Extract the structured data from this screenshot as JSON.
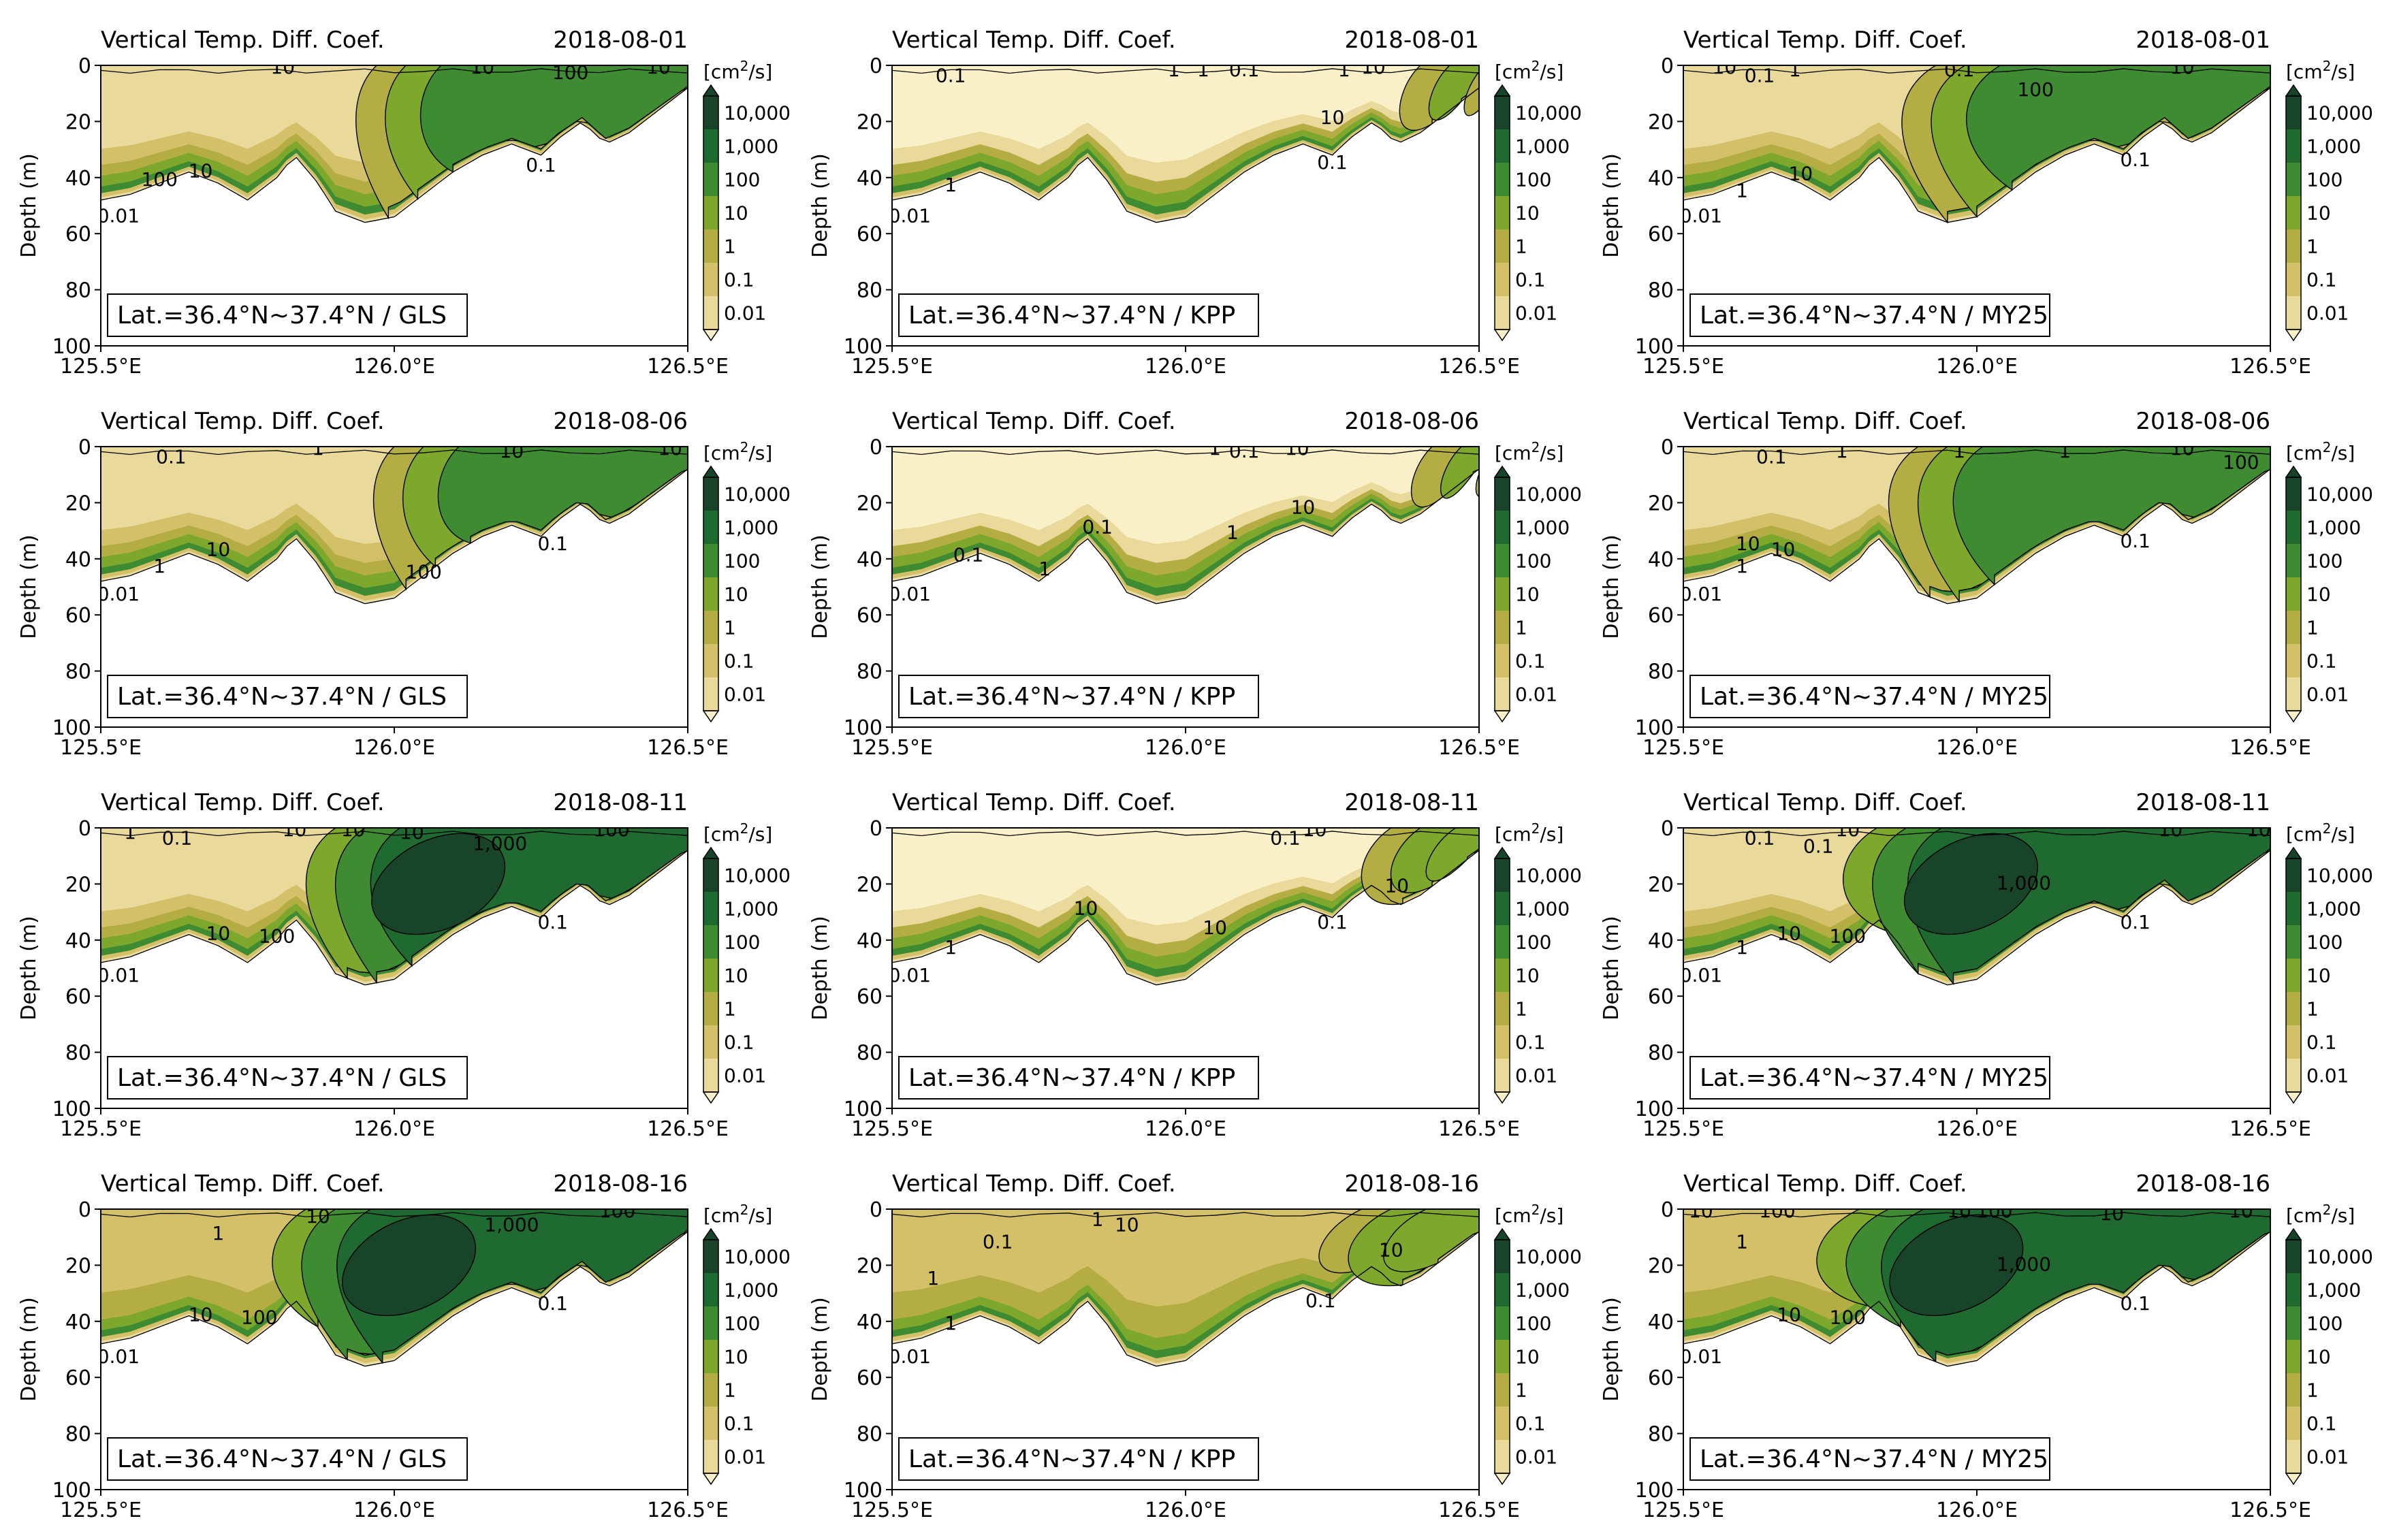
{
  "figure_title": "Vertical Temp. Diff. Coef.",
  "chart_data": {
    "type": "contour",
    "quantity": "Vertical Temp. Diff. Coef.",
    "units_prefix": "[cm",
    "units_sup": "2",
    "units_suffix": "/s]",
    "ylabel": "Depth (m)",
    "xlim": [
      125.5,
      126.5
    ],
    "ylim": [
      100,
      0
    ],
    "x_ticks": [
      125.5,
      126.0,
      126.5
    ],
    "x_tick_labels": [
      "125.5°E",
      "126.0°E",
      "126.5°E"
    ],
    "y_ticks": [
      0,
      20,
      40,
      60,
      80,
      100
    ],
    "y_tick_labels": [
      "0",
      "20",
      "40",
      "60",
      "80",
      "100"
    ],
    "latitude_label": "Lat.=36.4°N~37.4°N",
    "contour_levels": [
      0.01,
      0.1,
      1,
      10,
      100,
      1000,
      10000
    ],
    "colorbar_labels": [
      "10,000",
      "1,000",
      "100",
      "10",
      "1",
      "0.1",
      "0.01"
    ],
    "palette": [
      "#faf0c8",
      "#e9d99a",
      "#d4c068",
      "#b3ad44",
      "#7ea82c",
      "#3e8b32",
      "#1f6a30",
      "#18442a"
    ],
    "seafloor_depth": [
      [
        125.5,
        48
      ],
      [
        125.55,
        46
      ],
      [
        125.6,
        42
      ],
      [
        125.65,
        38
      ],
      [
        125.7,
        42
      ],
      [
        125.75,
        48
      ],
      [
        125.8,
        40
      ],
      [
        125.83,
        32
      ],
      [
        125.87,
        42
      ],
      [
        125.9,
        52
      ],
      [
        125.95,
        56
      ],
      [
        126.0,
        54
      ],
      [
        126.05,
        46
      ],
      [
        126.1,
        38
      ],
      [
        126.15,
        32
      ],
      [
        126.2,
        28
      ],
      [
        126.25,
        32
      ],
      [
        126.28,
        26
      ],
      [
        126.32,
        20
      ],
      [
        126.36,
        28
      ],
      [
        126.4,
        24
      ],
      [
        126.45,
        16
      ],
      [
        126.5,
        8
      ]
    ],
    "dates": [
      "2018-08-01",
      "2018-08-06",
      "2018-08-11",
      "2018-08-16"
    ],
    "schemes": [
      "GLS",
      "KPP",
      "MY25"
    ],
    "panels": [
      {
        "date": "2018-08-01",
        "scheme": "GLS",
        "front": [
          126.02,
          125.97,
          126.33
        ],
        "deep_level": 5,
        "surface": 1,
        "labels": [
          {
            "text": "10",
            "x": 125.81,
            "y": 0
          },
          {
            "text": "10",
            "x": 126.15,
            "y": 0
          },
          {
            "text": "100",
            "x": 126.3,
            "y": 2
          },
          {
            "text": "10",
            "x": 126.45,
            "y": 0
          },
          {
            "text": "10",
            "x": 125.67,
            "y": 37
          },
          {
            "text": "100",
            "x": 125.6,
            "y": 40
          },
          {
            "text": "0.01",
            "x": 125.53,
            "y": 53
          },
          {
            "text": "0.1",
            "x": 126.25,
            "y": 35
          }
        ]
      },
      {
        "date": "2018-08-01",
        "scheme": "KPP",
        "front": [
          126.45,
          126.4,
          126.5
        ],
        "deep_level": 3,
        "surface": 0,
        "labels": [
          {
            "text": "0.1",
            "x": 125.6,
            "y": 3
          },
          {
            "text": "1",
            "x": 125.98,
            "y": 1
          },
          {
            "text": "1",
            "x": 126.03,
            "y": 1
          },
          {
            "text": "0.1",
            "x": 126.1,
            "y": 1
          },
          {
            "text": "1",
            "x": 126.27,
            "y": 1
          },
          {
            "text": "10",
            "x": 126.32,
            "y": 0
          },
          {
            "text": "10",
            "x": 126.25,
            "y": 18
          },
          {
            "text": "0.1",
            "x": 126.25,
            "y": 34
          },
          {
            "text": "1",
            "x": 125.6,
            "y": 42
          },
          {
            "text": "0.01",
            "x": 125.53,
            "y": 53
          }
        ]
      },
      {
        "date": "2018-08-01",
        "scheme": "MY25",
        "front": [
          125.98,
          125.9,
          126.2
        ],
        "deep_level": 5,
        "surface": 1,
        "labels": [
          {
            "text": "10",
            "x": 125.57,
            "y": 0
          },
          {
            "text": "0.1",
            "x": 125.63,
            "y": 3
          },
          {
            "text": "1",
            "x": 125.69,
            "y": 1
          },
          {
            "text": "0.1",
            "x": 125.97,
            "y": 1
          },
          {
            "text": "10",
            "x": 126.35,
            "y": 0
          },
          {
            "text": "100",
            "x": 126.1,
            "y": 8
          },
          {
            "text": "10",
            "x": 125.7,
            "y": 38
          },
          {
            "text": "1",
            "x": 125.6,
            "y": 44
          },
          {
            "text": "0.01",
            "x": 125.53,
            "y": 53
          },
          {
            "text": "0.1",
            "x": 126.27,
            "y": 33
          }
        ]
      },
      {
        "date": "2018-08-06",
        "scheme": "GLS",
        "front": [
          126.05,
          126.0,
          126.35
        ],
        "deep_level": 5,
        "surface": 1,
        "labels": [
          {
            "text": "0.1",
            "x": 125.62,
            "y": 3
          },
          {
            "text": "1",
            "x": 125.87,
            "y": 0
          },
          {
            "text": "10",
            "x": 126.2,
            "y": 1
          },
          {
            "text": "10",
            "x": 126.47,
            "y": 0
          },
          {
            "text": "10",
            "x": 125.7,
            "y": 36
          },
          {
            "text": "1",
            "x": 125.6,
            "y": 42
          },
          {
            "text": "0.01",
            "x": 125.53,
            "y": 52
          },
          {
            "text": "100",
            "x": 126.05,
            "y": 44
          },
          {
            "text": "0.1",
            "x": 126.27,
            "y": 34
          }
        ]
      },
      {
        "date": "2018-08-06",
        "scheme": "KPP",
        "front": [
          126.47,
          126.42,
          126.5
        ],
        "deep_level": 3,
        "surface": 0,
        "labels": [
          {
            "text": "1",
            "x": 126.05,
            "y": 0
          },
          {
            "text": "0.1",
            "x": 126.1,
            "y": 1
          },
          {
            "text": "10",
            "x": 126.19,
            "y": 0
          },
          {
            "text": "0.1",
            "x": 125.85,
            "y": 28
          },
          {
            "text": "1",
            "x": 125.76,
            "y": 43
          },
          {
            "text": "0.1",
            "x": 125.63,
            "y": 38
          },
          {
            "text": "1",
            "x": 126.08,
            "y": 30
          },
          {
            "text": "10",
            "x": 126.2,
            "y": 21
          },
          {
            "text": "0.01",
            "x": 125.53,
            "y": 52
          }
        ]
      },
      {
        "date": "2018-08-06",
        "scheme": "MY25",
        "front": [
          125.95,
          125.88,
          126.15
        ],
        "deep_level": 5,
        "surface": 1,
        "labels": [
          {
            "text": "0.1",
            "x": 125.65,
            "y": 3
          },
          {
            "text": "1",
            "x": 125.77,
            "y": 1
          },
          {
            "text": "1",
            "x": 125.97,
            "y": 1
          },
          {
            "text": "1",
            "x": 126.15,
            "y": 1
          },
          {
            "text": "10",
            "x": 126.35,
            "y": 0
          },
          {
            "text": "100",
            "x": 126.45,
            "y": 5
          },
          {
            "text": "10",
            "x": 125.67,
            "y": 36
          },
          {
            "text": "10",
            "x": 125.61,
            "y": 34
          },
          {
            "text": "1",
            "x": 125.6,
            "y": 42
          },
          {
            "text": "0.01",
            "x": 125.53,
            "y": 52
          },
          {
            "text": "0.1",
            "x": 126.27,
            "y": 33
          }
        ]
      },
      {
        "date": "2018-08-11",
        "scheme": "GLS",
        "front": [
          125.95,
          125.88,
          126.1
        ],
        "deep_level": 6,
        "surface": 1,
        "labels": [
          {
            "text": "1",
            "x": 125.55,
            "y": 1
          },
          {
            "text": "0.1",
            "x": 125.63,
            "y": 3
          },
          {
            "text": "10",
            "x": 125.83,
            "y": 0
          },
          {
            "text": "10",
            "x": 125.93,
            "y": 0
          },
          {
            "text": "10",
            "x": 126.03,
            "y": 1
          },
          {
            "text": "1,000",
            "x": 126.18,
            "y": 5
          },
          {
            "text": "100",
            "x": 126.37,
            "y": 0
          },
          {
            "text": "10",
            "x": 125.7,
            "y": 37
          },
          {
            "text": "100",
            "x": 125.8,
            "y": 38
          },
          {
            "text": "0.01",
            "x": 125.53,
            "y": 52
          },
          {
            "text": "0.1",
            "x": 126.27,
            "y": 33
          }
        ]
      },
      {
        "date": "2018-08-11",
        "scheme": "KPP",
        "front": [
          126.4,
          126.33,
          126.5
        ],
        "deep_level": 4,
        "surface": 0,
        "labels": [
          {
            "text": "0.1",
            "x": 126.17,
            "y": 3
          },
          {
            "text": "10",
            "x": 126.22,
            "y": 0
          },
          {
            "text": "10",
            "x": 125.83,
            "y": 28
          },
          {
            "text": "10",
            "x": 126.05,
            "y": 35
          },
          {
            "text": "0.1",
            "x": 126.25,
            "y": 33
          },
          {
            "text": "10",
            "x": 126.36,
            "y": 20
          },
          {
            "text": "1",
            "x": 125.6,
            "y": 42
          },
          {
            "text": "0.01",
            "x": 125.53,
            "y": 52
          }
        ]
      },
      {
        "date": "2018-08-11",
        "scheme": "MY25",
        "front": [
          125.88,
          125.8,
          126.0
        ],
        "deep_level": 6,
        "surface": 1,
        "labels": [
          {
            "text": "0.1",
            "x": 125.63,
            "y": 3
          },
          {
            "text": "0.1",
            "x": 125.73,
            "y": 6
          },
          {
            "text": "10",
            "x": 125.78,
            "y": 0
          },
          {
            "text": "1,000",
            "x": 126.08,
            "y": 19
          },
          {
            "text": "10",
            "x": 126.33,
            "y": 0
          },
          {
            "text": "10",
            "x": 126.48,
            "y": 0
          },
          {
            "text": "10",
            "x": 125.68,
            "y": 37
          },
          {
            "text": "100",
            "x": 125.78,
            "y": 38
          },
          {
            "text": "1",
            "x": 125.6,
            "y": 42
          },
          {
            "text": "0.01",
            "x": 125.53,
            "y": 52
          },
          {
            "text": "0.1",
            "x": 126.27,
            "y": 33
          }
        ]
      },
      {
        "date": "2018-08-16",
        "scheme": "GLS",
        "front": [
          125.9,
          125.82,
          126.05
        ],
        "deep_level": 6,
        "surface": 2,
        "labels": [
          {
            "text": "1",
            "x": 125.7,
            "y": 8
          },
          {
            "text": "10",
            "x": 125.87,
            "y": 2
          },
          {
            "text": "1,000",
            "x": 126.2,
            "y": 5
          },
          {
            "text": "100",
            "x": 126.38,
            "y": 0
          },
          {
            "text": "10",
            "x": 125.67,
            "y": 37
          },
          {
            "text": "100",
            "x": 125.77,
            "y": 38
          },
          {
            "text": "0.01",
            "x": 125.53,
            "y": 52
          },
          {
            "text": "0.1",
            "x": 126.27,
            "y": 33
          }
        ]
      },
      {
        "date": "2018-08-16",
        "scheme": "KPP",
        "front": [
          126.35,
          126.25,
          126.48
        ],
        "deep_level": 4,
        "surface": 2,
        "labels": [
          {
            "text": "1",
            "x": 125.85,
            "y": 3
          },
          {
            "text": "0.1",
            "x": 125.68,
            "y": 11
          },
          {
            "text": "10",
            "x": 125.9,
            "y": 5
          },
          {
            "text": "0.1",
            "x": 126.23,
            "y": 32
          },
          {
            "text": "10",
            "x": 126.35,
            "y": 14
          },
          {
            "text": "1",
            "x": 125.6,
            "y": 40
          },
          {
            "text": "1",
            "x": 125.57,
            "y": 24
          },
          {
            "text": "0.01",
            "x": 125.53,
            "y": 52
          }
        ]
      },
      {
        "date": "2018-08-16",
        "scheme": "MY25",
        "front": [
          125.85,
          125.75,
          125.98
        ],
        "deep_level": 6,
        "surface": 2,
        "labels": [
          {
            "text": "10",
            "x": 125.53,
            "y": 0
          },
          {
            "text": "100",
            "x": 125.66,
            "y": 0
          },
          {
            "text": "1",
            "x": 125.6,
            "y": 11
          },
          {
            "text": "10",
            "x": 125.97,
            "y": 0
          },
          {
            "text": "100",
            "x": 126.03,
            "y": 0
          },
          {
            "text": "10",
            "x": 126.23,
            "y": 1
          },
          {
            "text": "10",
            "x": 126.45,
            "y": 0
          },
          {
            "text": "1,000",
            "x": 126.08,
            "y": 19
          },
          {
            "text": "10",
            "x": 125.68,
            "y": 37
          },
          {
            "text": "100",
            "x": 125.78,
            "y": 38
          },
          {
            "text": "0.01",
            "x": 125.53,
            "y": 52
          },
          {
            "text": "0.1",
            "x": 126.27,
            "y": 33
          }
        ]
      }
    ]
  }
}
